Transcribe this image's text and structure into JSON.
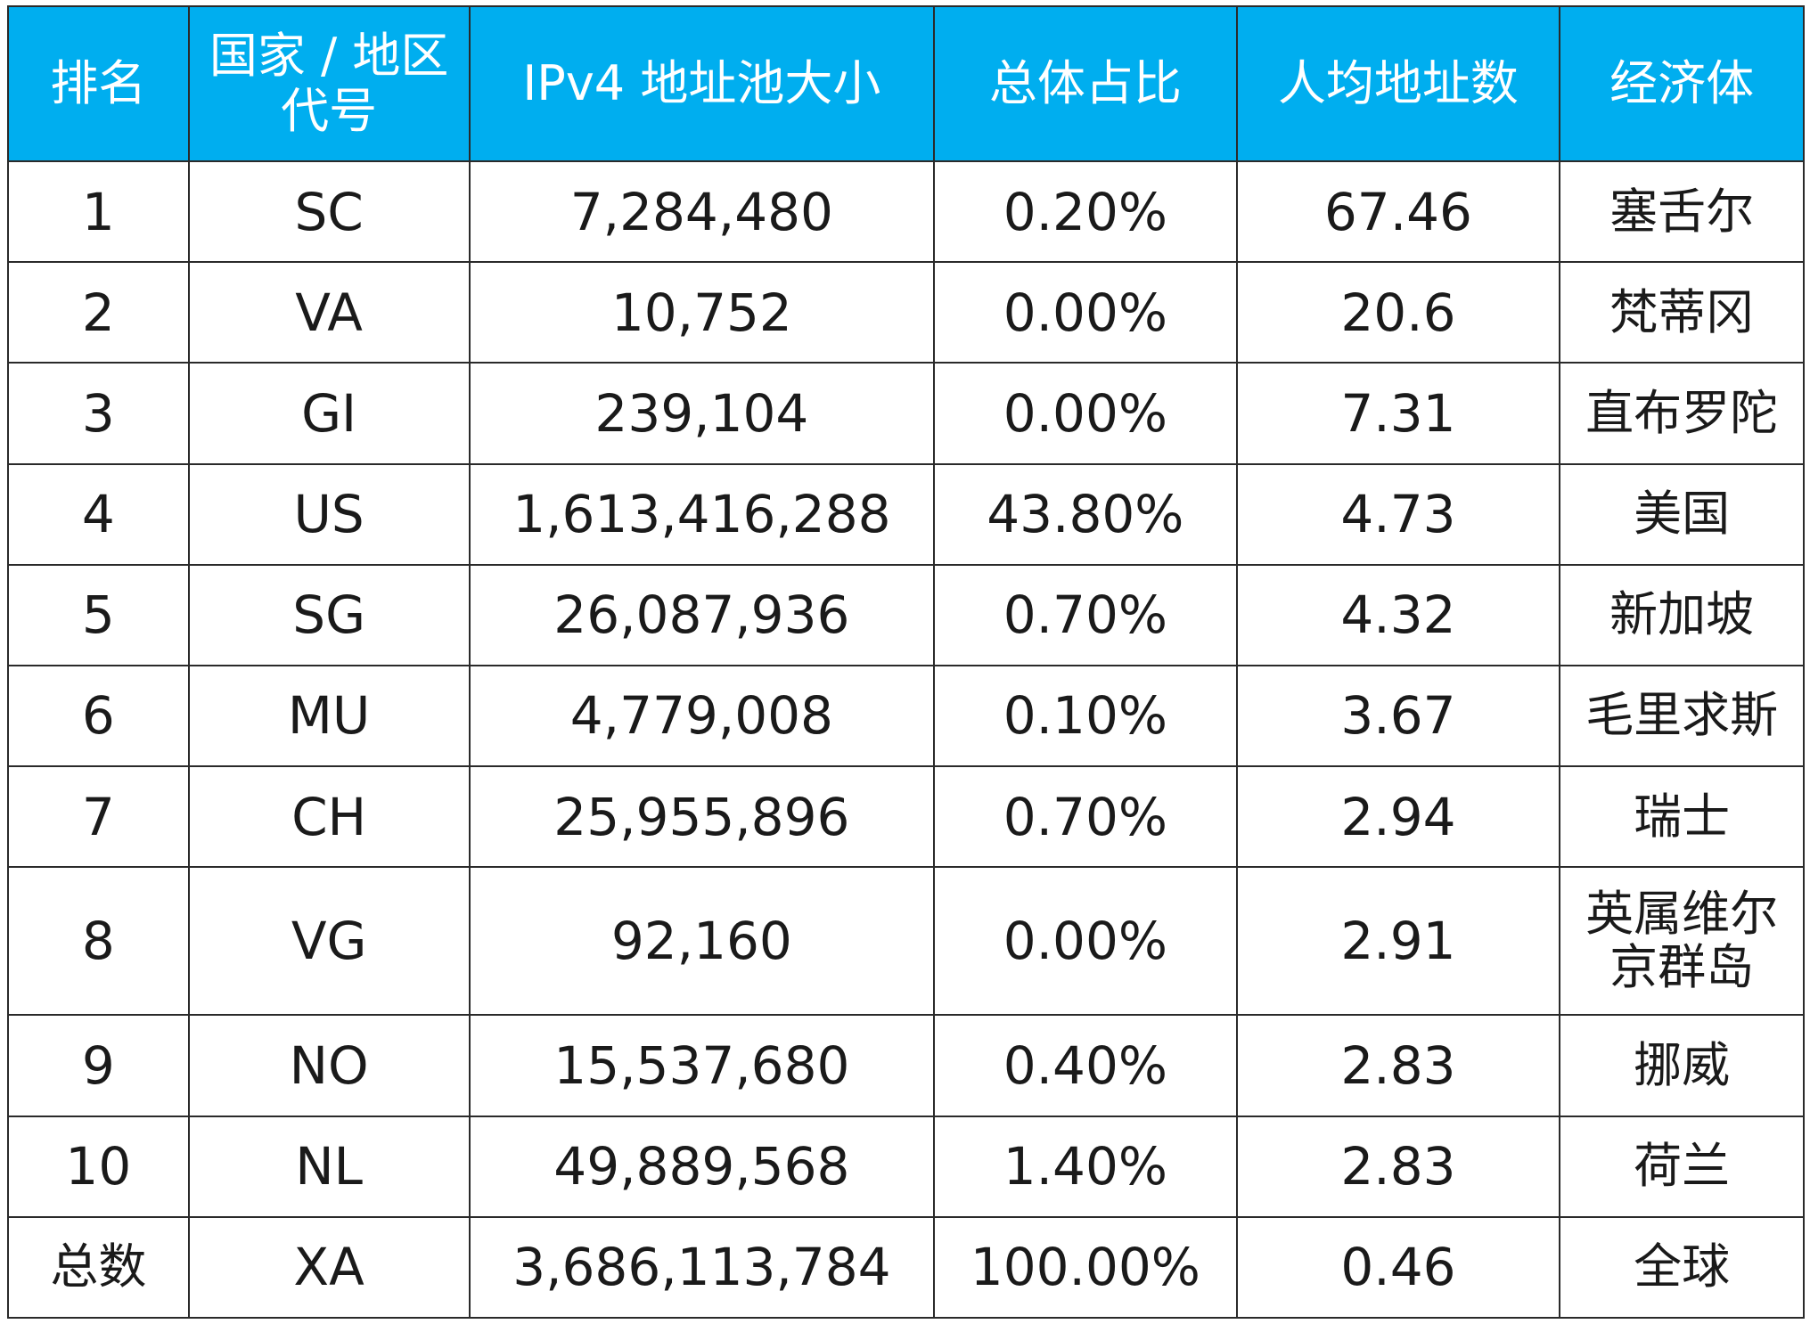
{
  "chart_data": {
    "type": "table",
    "columns": [
      "排名",
      "国家 / 地区代号",
      "IPv4 地址池大小",
      "总体占比",
      "人均地址数",
      "经济体"
    ],
    "rows": [
      {
        "rank": "1",
        "code": "SC",
        "pool": "7,284,480",
        "share": "0.20%",
        "per_capita": "67.46",
        "name": "塞舌尔"
      },
      {
        "rank": "2",
        "code": "VA",
        "pool": "10,752",
        "share": "0.00%",
        "per_capita": "20.6",
        "name": "梵蒂冈"
      },
      {
        "rank": "3",
        "code": "GI",
        "pool": "239,104",
        "share": "0.00%",
        "per_capita": "7.31",
        "name": "直布罗陀"
      },
      {
        "rank": "4",
        "code": "US",
        "pool": "1,613,416,288",
        "share": "43.80%",
        "per_capita": "4.73",
        "name": "美国"
      },
      {
        "rank": "5",
        "code": "SG",
        "pool": "26,087,936",
        "share": "0.70%",
        "per_capita": "4.32",
        "name": "新加坡"
      },
      {
        "rank": "6",
        "code": "MU",
        "pool": "4,779,008",
        "share": "0.10%",
        "per_capita": "3.67",
        "name": "毛里求斯"
      },
      {
        "rank": "7",
        "code": "CH",
        "pool": "25,955,896",
        "share": "0.70%",
        "per_capita": "2.94",
        "name": "瑞士"
      },
      {
        "rank": "8",
        "code": "VG",
        "pool": "92,160",
        "share": "0.00%",
        "per_capita": "2.91",
        "name": "英属维尔京群岛"
      },
      {
        "rank": "9",
        "code": "NO",
        "pool": "15,537,680",
        "share": "0.40%",
        "per_capita": "2.83",
        "name": "挪威"
      },
      {
        "rank": "10",
        "code": "NL",
        "pool": "49,889,568",
        "share": "1.40%",
        "per_capita": "2.83",
        "name": "荷兰"
      },
      {
        "rank": "总数",
        "code": "XA",
        "pool": "3,686,113,784",
        "share": "100.00%",
        "per_capita": "0.46",
        "name": "全球"
      }
    ]
  },
  "colors": {
    "header_bg": "#00aeef",
    "header_text": "#ffffff",
    "border": "#2a2a2a",
    "cell_text": "#1a1a1a"
  }
}
